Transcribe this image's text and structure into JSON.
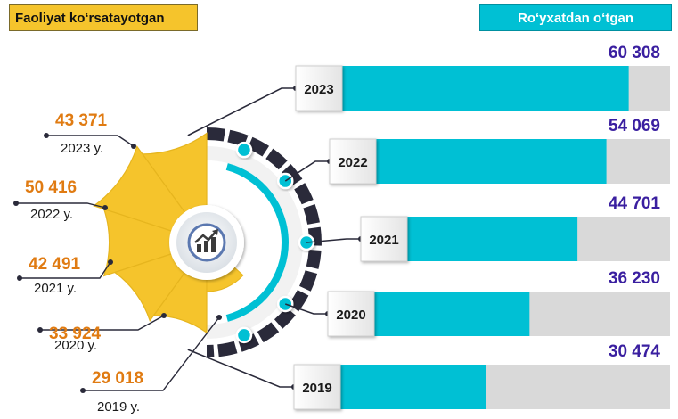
{
  "header_left": "Faoliyat ko‘rsatayotgan",
  "header_right": "Ro‘yxatdan o‘tgan",
  "colors": {
    "active": "#f5c42c",
    "active_dark": "#e6ad12",
    "registered": "#00c0d4",
    "track": "#d9d9d9",
    "active_value_text": "#e07b12",
    "registered_value_text": "#3a1fa0",
    "ring_dark": "#2a2a3a"
  },
  "icon": "growth-chart-icon",
  "chart_data": [
    {
      "type": "bar",
      "orientation": "horizontal",
      "categories": [
        "2023",
        "2022",
        "2021",
        "2020",
        "2019"
      ],
      "series": [
        {
          "name": "Ro‘yxatdan o‘tgan",
          "values": [
            60308,
            54069,
            44701,
            36230,
            30474
          ]
        }
      ],
      "value_labels": [
        "60 308",
        "54 069",
        "44 701",
        "36 230",
        "30 474"
      ],
      "xlim": [
        0,
        69000
      ]
    },
    {
      "type": "pie",
      "series": [
        {
          "name": "Faoliyat ko‘rsatayotgan",
          "values": [
            43371,
            50416,
            42491,
            33924,
            29018
          ]
        }
      ],
      "categories": [
        "2023 y.",
        "2022 y.",
        "2021 y.",
        "2020 y.",
        "2019 y."
      ],
      "value_labels": [
        "43 371",
        "50 416",
        "42 491",
        "33 924",
        "29 018"
      ]
    }
  ]
}
